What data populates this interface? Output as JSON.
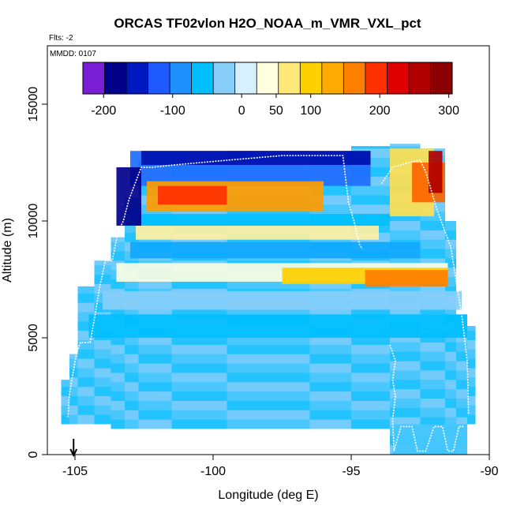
{
  "chart_data": {
    "type": "heatmap",
    "title": "ORCAS TF02vlon H2O_NOAA_m_VMR_VXL_pct",
    "notes": {
      "flights": "Flts: -2",
      "date": "MMDD: 0107"
    },
    "xlabel": "Longitude (deg E)",
    "ylabel": "Altitude (m)",
    "xlim": [
      -106,
      -90
    ],
    "ylim": [
      0,
      17500
    ],
    "x_ticks": [
      -105,
      -100,
      -95,
      -90
    ],
    "y_ticks": [
      0,
      5000,
      10000,
      15000
    ],
    "colorbar": {
      "ticks": [
        -200,
        -100,
        0,
        50,
        100,
        200,
        300
      ],
      "range": [
        -230,
        305
      ],
      "colors": [
        "#7a1fd6",
        "#00008b",
        "#0018c0",
        "#1e5aff",
        "#1e90ff",
        "#00bfff",
        "#87cefa",
        "#d6f0ff",
        "#ffffe0",
        "#ffe87a",
        "#ffd000",
        "#ffaa00",
        "#ff7f00",
        "#ff3000",
        "#e00000",
        "#b00000",
        "#8b0000"
      ]
    },
    "marker": {
      "x": -105.05,
      "label": "↓"
    },
    "column_bins": [
      {
        "x0": -105.5,
        "x1": -105.2,
        "ymin": 1300,
        "ymax": 3200
      },
      {
        "x0": -105.2,
        "x1": -104.9,
        "ymin": 1300,
        "ymax": 4300
      },
      {
        "x0": -104.9,
        "x1": -104.3,
        "ymin": 1300,
        "ymax": 7200
      },
      {
        "x0": -104.3,
        "x1": -103.7,
        "ymin": 1300,
        "ymax": 8300
      },
      {
        "x0": -103.7,
        "x1": -103.2,
        "ymin": 1100,
        "ymax": 9300
      },
      {
        "x0": -103.2,
        "x1": -102.7,
        "ymin": 1100,
        "ymax": 11000
      },
      {
        "x0": -102.7,
        "x1": -101.5,
        "ymin": 1100,
        "ymax": 12600
      },
      {
        "x0": -101.5,
        "x1": -99.5,
        "ymin": 1100,
        "ymax": 12900
      },
      {
        "x0": -99.5,
        "x1": -96.5,
        "ymin": 1100,
        "ymax": 13000
      },
      {
        "x0": -96.5,
        "x1": -95.0,
        "ymin": 1100,
        "ymax": 12900
      },
      {
        "x0": -95.0,
        "x1": -93.6,
        "ymin": 1100,
        "ymax": 13200
      },
      {
        "x0": -93.6,
        "x1": -92.5,
        "ymin": 0,
        "ymax": 13300
      },
      {
        "x0": -92.5,
        "x1": -91.6,
        "ymin": 0,
        "ymax": 13100
      },
      {
        "x0": -91.6,
        "x1": -91.2,
        "ymin": 0,
        "ymax": 10000
      },
      {
        "x0": -91.2,
        "x1": -90.8,
        "ymin": 0,
        "ymax": 6000
      },
      {
        "x0": -90.8,
        "x1": -90.5,
        "ymin": 1300,
        "ymax": 5500
      }
    ],
    "features": [
      {
        "x0": -103.0,
        "x1": -94.3,
        "y0": 11500,
        "y1": 13000,
        "value": -120
      },
      {
        "x0": -102.6,
        "x1": -94.3,
        "y0": 12400,
        "y1": 13000,
        "value": -180
      },
      {
        "x0": -102.4,
        "x1": -96.0,
        "y0": 10400,
        "y1": 11700,
        "value": 150
      },
      {
        "x0": -102.0,
        "x1": -99.5,
        "y0": 10700,
        "y1": 11500,
        "value": 200
      },
      {
        "x0": -102.8,
        "x1": -94.0,
        "y0": 9200,
        "y1": 9800,
        "value": 70
      },
      {
        "x0": -103.0,
        "x1": -93.6,
        "y0": 9800,
        "y1": 10300,
        "value": -60
      },
      {
        "x0": -103.5,
        "x1": -91.5,
        "y0": 7400,
        "y1": 8200,
        "value": 50
      },
      {
        "x0": -97.5,
        "x1": -91.5,
        "y0": 7300,
        "y1": 8000,
        "value": 110
      },
      {
        "x0": -94.5,
        "x1": -91.5,
        "y0": 7200,
        "y1": 7900,
        "value": 170
      },
      {
        "x0": -104.0,
        "x1": -91.0,
        "y0": 6200,
        "y1": 7000,
        "value": -20
      },
      {
        "x0": -104.5,
        "x1": -90.8,
        "y0": 5000,
        "y1": 6000,
        "value": -60
      },
      {
        "x0": -103.0,
        "x1": -92.5,
        "y0": 8400,
        "y1": 9100,
        "value": -80
      },
      {
        "x0": -93.6,
        "x1": -92.0,
        "y0": 10200,
        "y1": 13100,
        "value": 90
      },
      {
        "x0": -92.8,
        "x1": -91.6,
        "y0": 10800,
        "y1": 12500,
        "value": 180
      },
      {
        "x0": -92.2,
        "x1": -91.7,
        "y0": 11200,
        "y1": 13000,
        "value": 260
      },
      {
        "x0": -103.5,
        "x1": -102.6,
        "y0": 9800,
        "y1": 12300,
        "value": -200
      },
      {
        "x0": -93.5,
        "x1": -90.8,
        "y0": 0,
        "y1": 1300,
        "value": -40
      }
    ],
    "flight_track": [
      [
        -105.25,
        1600
      ],
      [
        -105.2,
        2600
      ],
      [
        -105.1,
        3300
      ],
      [
        -104.95,
        4300
      ],
      [
        -104.8,
        4800
      ],
      [
        -104.45,
        4800
      ],
      [
        -104.3,
        5800
      ],
      [
        -104.1,
        7200
      ],
      [
        -103.9,
        8300
      ],
      [
        -103.65,
        8300
      ],
      [
        -103.45,
        9500
      ],
      [
        -103.25,
        10000
      ],
      [
        -103.05,
        10900
      ],
      [
        -102.6,
        12300
      ],
      [
        -102.2,
        12300
      ],
      [
        -101.4,
        12400
      ],
      [
        -99.5,
        12600
      ],
      [
        -97.5,
        12800
      ],
      [
        -95.3,
        12800
      ],
      [
        -95.1,
        10800
      ],
      [
        -94.9,
        10000
      ],
      [
        -94.7,
        9000
      ],
      [
        -94.6,
        8800
      ]
    ],
    "flight_track_2": [
      [
        -93.9,
        11600
      ],
      [
        -93.5,
        12300
      ],
      [
        -92.9,
        12500
      ],
      [
        -92.5,
        12600
      ],
      [
        -92.3,
        12100
      ],
      [
        -91.9,
        10500
      ],
      [
        -91.4,
        8900
      ],
      [
        -91.0,
        6000
      ],
      [
        -90.8,
        4000
      ],
      [
        -90.75,
        1700
      ]
    ],
    "flight_track_3": [
      [
        -93.6,
        4700
      ],
      [
        -93.4,
        4000
      ],
      [
        -93.5,
        3200
      ],
      [
        -93.4,
        2500
      ],
      [
        -93.5,
        1500
      ],
      [
        -93.45,
        150
      ],
      [
        -93.2,
        1200
      ],
      [
        -92.8,
        1200
      ],
      [
        -92.6,
        150
      ],
      [
        -92.3,
        150
      ],
      [
        -92.0,
        1200
      ],
      [
        -91.7,
        1200
      ],
      [
        -91.5,
        150
      ],
      [
        -91.3,
        150
      ],
      [
        -91.1,
        1200
      ],
      [
        -90.9,
        1200
      ]
    ]
  }
}
